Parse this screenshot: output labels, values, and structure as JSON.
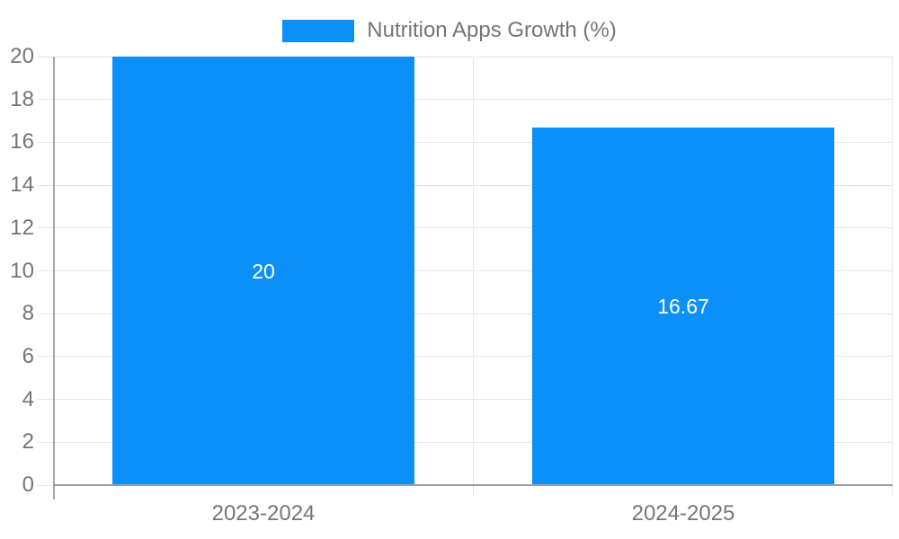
{
  "legend": {
    "label": "Nutrition Apps Growth (%)"
  },
  "colors": {
    "bar": "#0a90f8",
    "grid": "#e6e6e6",
    "axis": "#9e9e9e",
    "axis_left": "#a6a6a6",
    "tick_text": "#757575",
    "data_label": "#ffffff",
    "background": "#ffffff"
  },
  "chart_data": {
    "type": "bar",
    "title": "Nutrition Apps Growth (%)",
    "categories": [
      "2023-2024",
      "2024-2025"
    ],
    "values": [
      20,
      16.67
    ],
    "value_labels": [
      "20",
      "16.67"
    ],
    "xlabel": "",
    "ylabel": "",
    "ylim": [
      0,
      20
    ],
    "yticks": [
      0,
      2,
      4,
      6,
      8,
      10,
      12,
      14,
      16,
      18,
      20
    ],
    "grid": true,
    "legend_position": "top-center"
  }
}
